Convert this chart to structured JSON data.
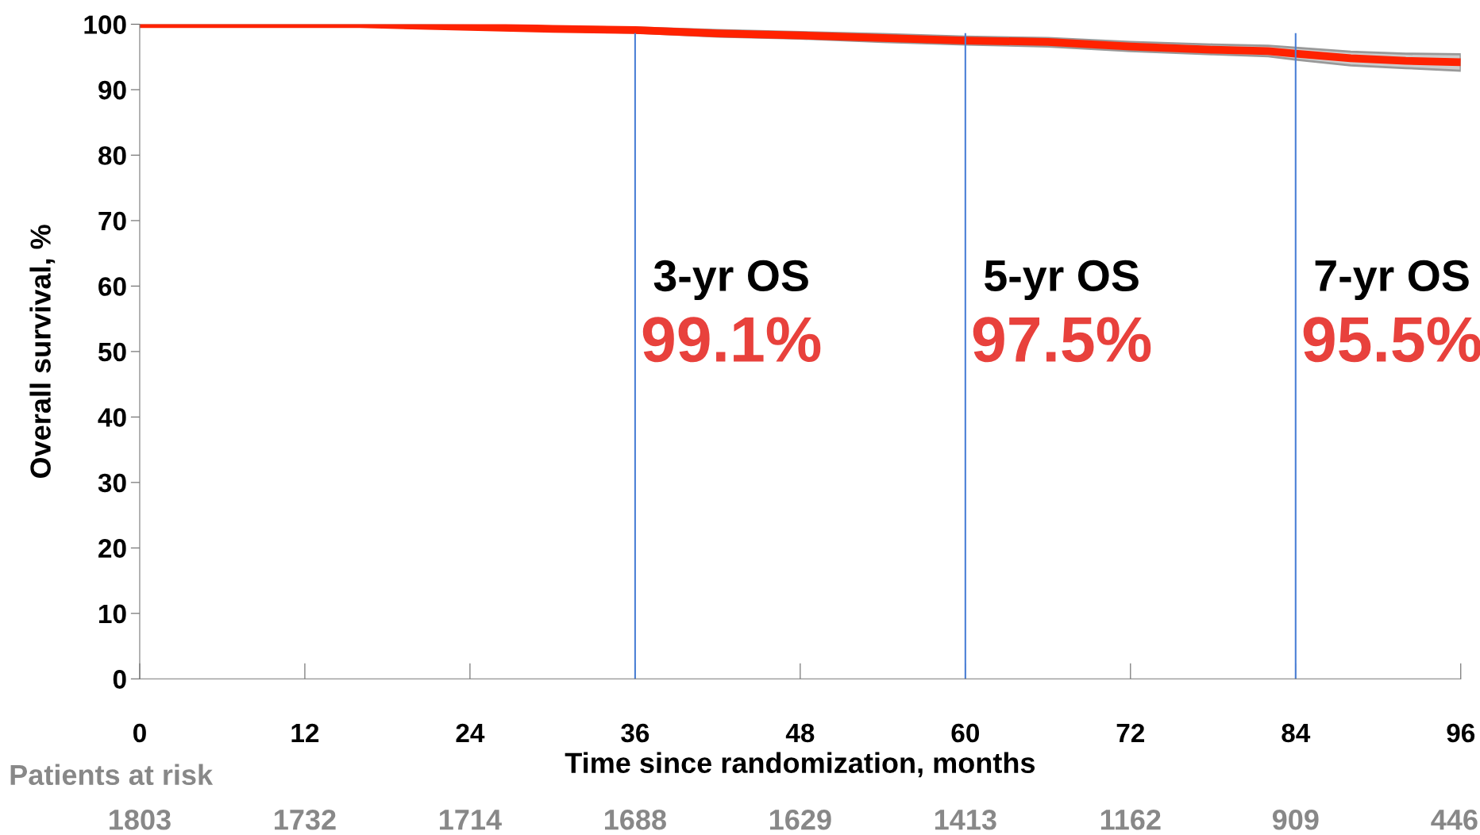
{
  "chart_data": {
    "type": "line",
    "xlabel": "Time since randomization, months",
    "ylabel": "Overall survival, %",
    "series": [
      {
        "color": "#ff2200",
        "x": [
          0,
          12,
          16,
          24,
          30,
          36,
          42,
          48,
          54,
          60,
          66,
          72,
          78,
          82,
          84,
          88,
          92,
          96
        ],
        "values": [
          100,
          100,
          100,
          99.6,
          99.3,
          99.1,
          98.6,
          98.3,
          97.9,
          97.5,
          97.3,
          96.6,
          96.1,
          95.9,
          95.5,
          94.8,
          94.4,
          94.2
        ],
        "upper": [
          100,
          100,
          100,
          99.8,
          99.6,
          99.5,
          99.1,
          98.8,
          98.5,
          98.1,
          97.9,
          97.3,
          96.9,
          96.7,
          96.4,
          95.8,
          95.5,
          95.4
        ],
        "lower": [
          100,
          100,
          100,
          99.4,
          99.0,
          98.7,
          98.1,
          97.8,
          97.3,
          96.9,
          96.6,
          95.9,
          95.4,
          95.1,
          94.6,
          93.7,
          93.3,
          92.9
        ]
      }
    ],
    "xlim": [
      0,
      96
    ],
    "xticks": [
      0,
      12,
      24,
      36,
      48,
      60,
      72,
      84,
      96
    ],
    "ylim": [
      0,
      100
    ],
    "yticks": [
      0,
      10,
      20,
      30,
      40,
      50,
      60,
      70,
      80,
      90,
      100
    ],
    "ref_lines": [
      {
        "axis": "x",
        "value": 36,
        "label": "3-yr OS",
        "color": "#4a7fd6"
      },
      {
        "axis": "x",
        "value": 60,
        "label": "5-yr OS",
        "color": "#4a7fd6"
      },
      {
        "axis": "x",
        "value": 84,
        "label": "7-yr OS",
        "color": "#4a7fd6"
      }
    ],
    "annotations": [
      "99.1%",
      "97.5%",
      "95.5%",
      "Patients at risk",
      "1803",
      "1732",
      "1714",
      "1688",
      "1629",
      "1413",
      "1162",
      "909",
      "446"
    ],
    "grid": false,
    "legend": false
  }
}
